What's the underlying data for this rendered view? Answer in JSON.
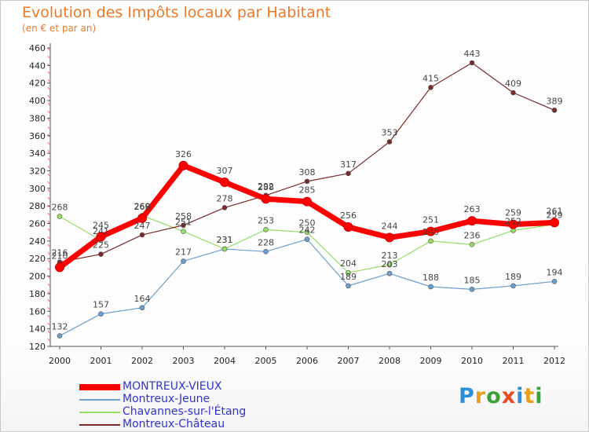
{
  "title": "Evolution des Impôts locaux par Habitant",
  "subtitle": "(en € et par an)",
  "logo": "Proxiti",
  "chart_data": {
    "type": "line",
    "title": "Evolution des Impôts locaux par Habitant",
    "subtitle": "(en € et par an)",
    "xlabel": "",
    "ylabel": "",
    "x": [
      "2000",
      "2001",
      "2002",
      "2003",
      "2004",
      "2005",
      "2006",
      "2007",
      "2008",
      "2009",
      "2010",
      "2011",
      "2012"
    ],
    "ylim": [
      120,
      460
    ],
    "yticks": [
      120,
      140,
      160,
      180,
      200,
      220,
      240,
      260,
      280,
      300,
      320,
      340,
      360,
      380,
      400,
      420,
      440,
      460
    ],
    "grid": false,
    "legend_position": "bottom-left",
    "series": [
      {
        "name": "MONTREUX-VIEUX",
        "color": "#ff0000",
        "values": [
          210,
          245,
          266,
          326,
          307,
          288,
          285,
          256,
          244,
          251,
          263,
          259,
          261
        ]
      },
      {
        "name": "Montreux-Jeune",
        "color": "#6a9fcf",
        "values": [
          132,
          157,
          164,
          217,
          231,
          228,
          242,
          189,
          203,
          188,
          185,
          189,
          194
        ]
      },
      {
        "name": "Chavannes-sur-l'Étang",
        "color": "#99dd66",
        "values": [
          268,
          241,
          269,
          251,
          231,
          253,
          250,
          204,
          213,
          240,
          236,
          252,
          259
        ]
      },
      {
        "name": "Montreux-Château",
        "color": "#7a2a2a",
        "values": [
          216,
          225,
          247,
          258,
          278,
          292,
          308,
          317,
          353,
          415,
          443,
          409,
          389
        ]
      }
    ]
  }
}
